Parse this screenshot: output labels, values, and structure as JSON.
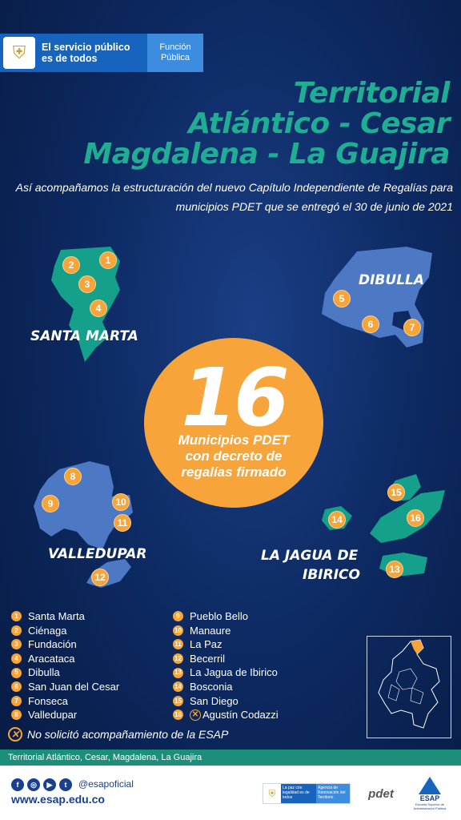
{
  "header": {
    "gov_text": "El servicio público es de todos",
    "fp_text": "Función Pública"
  },
  "title": {
    "line1": "Territorial",
    "line2": "Atlántico - Cesar",
    "line3": "Magdalena - La Guajira"
  },
  "subtitle": "Así acompañamos la estructuración del nuevo Capítulo Independiente de Regalías para municipios PDET que se entregó el 30 de junio de 2021",
  "regions": {
    "santa_marta": "SANTA MARTA",
    "dibulla": "DIBULLA",
    "valledupar": "VALLEDUPAR",
    "la_jagua_line1": "LA JAGUA DE",
    "la_jagua_line2": "IBIRICO"
  },
  "map_numbers": [
    "1",
    "2",
    "3",
    "4",
    "5",
    "6",
    "7",
    "8",
    "9",
    "10",
    "11",
    "12",
    "13",
    "14",
    "15",
    "16"
  ],
  "highlight": {
    "number": "16",
    "line1": "Municipios PDET",
    "line2": "con decreto de",
    "line3": "regalías firmado"
  },
  "municipalities_left": [
    {
      "num": "1",
      "name": "Santa Marta"
    },
    {
      "num": "2",
      "name": "Ciénaga"
    },
    {
      "num": "3",
      "name": "Fundación"
    },
    {
      "num": "4",
      "name": "Aracataca"
    },
    {
      "num": "5",
      "name": "Dibulla"
    },
    {
      "num": "6",
      "name": "San Juan del Cesar"
    },
    {
      "num": "7",
      "name": "Fonseca"
    },
    {
      "num": "8",
      "name": "Valledupar"
    }
  ],
  "municipalities_right": [
    {
      "num": "9",
      "name": "Pueblo Bello"
    },
    {
      "num": "10",
      "name": "Manaure"
    },
    {
      "num": "11",
      "name": "La Paz"
    },
    {
      "num": "12",
      "name": "Becerril"
    },
    {
      "num": "13",
      "name": "La Jagua de Ibirico"
    },
    {
      "num": "14",
      "name": "Bosconia"
    },
    {
      "num": "15",
      "name": "San Diego"
    },
    {
      "num": "16",
      "name": "Agustín Codazzi"
    }
  ],
  "note": "No solicitó acompañamiento de la ESAP",
  "strip_text": "Territorial Atlántico, Cesar, Magdalena, La Guajira",
  "footer": {
    "handle": "@esapoficial",
    "website": "www.esap.edu.co",
    "paz_line1": "La paz con legalidad es de todos",
    "paz_line2": "Agencia de Renovación del Territorio",
    "pdet": "pdet",
    "esap": "ESAP",
    "esap_sub": "Escuela Superior de Administración Pública"
  },
  "colors": {
    "background": "#0d2a63",
    "title_green": "#1fae94",
    "accent_orange": "#f7a53a",
    "map_green": "#14a08a",
    "map_blue": "#4d78c4"
  }
}
